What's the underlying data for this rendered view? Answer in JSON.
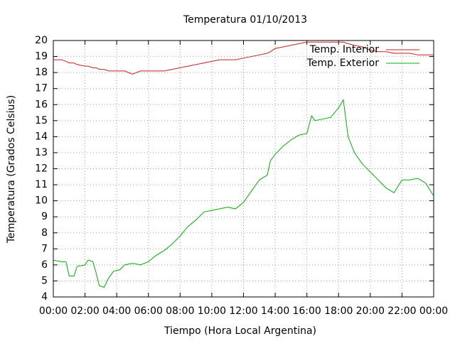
{
  "chart_data": {
    "type": "line",
    "title": "Temperatura 01/10/2013",
    "x_label": "Tiempo (Hora Local Argentina)",
    "y_label": "Temperatura (Grados Celsius)",
    "x": [
      0,
      0.5,
      0.8,
      1,
      1.3,
      1.5,
      2,
      2.2,
      2.5,
      2.7,
      2.9,
      3.2,
      3.5,
      3.8,
      4.2,
      4.5,
      5,
      5.5,
      6,
      6.5,
      7,
      7.5,
      8,
      8.5,
      9,
      9.5,
      10,
      10.5,
      11,
      11.5,
      12,
      12.5,
      13,
      13.5,
      13.7,
      14,
      14.5,
      15,
      15.5,
      16,
      16.3,
      16.5,
      17,
      17.5,
      18,
      18.3,
      18.6,
      19,
      19.5,
      20,
      20.5,
      21,
      21.5,
      22,
      22.5,
      23,
      23.5,
      24
    ],
    "series": [
      {
        "name": "Temp. Interior",
        "color": "#c02020",
        "values": [
          18.8,
          18.8,
          18.7,
          18.6,
          18.6,
          18.5,
          18.4,
          18.4,
          18.3,
          18.3,
          18.2,
          18.2,
          18.1,
          18.1,
          18.1,
          18.1,
          17.9,
          18.1,
          18.1,
          18.1,
          18.1,
          18.2,
          18.3,
          18.4,
          18.5,
          18.6,
          18.7,
          18.8,
          18.8,
          18.8,
          18.9,
          19.0,
          19.1,
          19.2,
          19.3,
          19.5,
          19.6,
          19.7,
          19.8,
          19.9,
          19.9,
          19.9,
          19.9,
          19.9,
          19.9,
          19.9,
          19.8,
          19.7,
          19.6,
          19.4,
          19.3,
          19.3,
          19.2,
          19.2,
          19.2,
          19.1,
          19.1,
          19.1
        ]
      },
      {
        "name": "Temp. Exterior",
        "color": "#00b000",
        "values": [
          6.3,
          6.2,
          6.2,
          5.3,
          5.3,
          5.9,
          6.0,
          6.3,
          6.2,
          5.5,
          4.7,
          4.6,
          5.2,
          5.6,
          5.7,
          6.0,
          6.1,
          6.0,
          6.2,
          6.6,
          6.9,
          7.3,
          7.8,
          8.4,
          8.8,
          9.3,
          9.4,
          9.5,
          9.6,
          9.5,
          9.9,
          10.6,
          11.3,
          11.6,
          12.5,
          12.9,
          13.4,
          13.8,
          14.1,
          14.2,
          15.3,
          15.0,
          15.1,
          15.2,
          15.8,
          16.3,
          14.0,
          13.0,
          12.3,
          11.8,
          11.3,
          10.8,
          10.5,
          11.3,
          11.3,
          11.4,
          11.1,
          10.3
        ]
      }
    ],
    "xlim": [
      0,
      24
    ],
    "xticks": [
      {
        "value": 0,
        "label": "00:00"
      },
      {
        "value": 2,
        "label": "02:00"
      },
      {
        "value": 4,
        "label": "04:00"
      },
      {
        "value": 6,
        "label": "06:00"
      },
      {
        "value": 8,
        "label": "08:00"
      },
      {
        "value": 10,
        "label": "10:00"
      },
      {
        "value": 12,
        "label": "12:00"
      },
      {
        "value": 14,
        "label": "14:00"
      },
      {
        "value": 16,
        "label": "16:00"
      },
      {
        "value": 18,
        "label": "18:00"
      },
      {
        "value": 20,
        "label": "20:00"
      },
      {
        "value": 22,
        "label": "22:00"
      },
      {
        "value": 24,
        "label": "00:00"
      }
    ],
    "ylim": [
      4,
      20
    ],
    "yticks": [
      4,
      5,
      6,
      7,
      8,
      9,
      10,
      11,
      12,
      13,
      14,
      15,
      16,
      17,
      18,
      19,
      20
    ],
    "grid": true,
    "legend": "upper right"
  }
}
